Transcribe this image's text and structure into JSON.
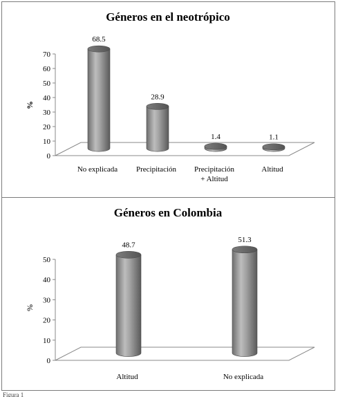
{
  "chart_data": [
    {
      "type": "bar",
      "title": "Géneros en el neotrópico",
      "ylabel": "%",
      "xlabel": "",
      "categories": [
        "No explicada",
        "Precipitación",
        "Precipitación + Altitud",
        "Altitud"
      ],
      "category_lines": [
        [
          "No explicada"
        ],
        [
          "Precipitación"
        ],
        [
          "Precipitación",
          "+ Altitud"
        ],
        [
          "Altitud"
        ]
      ],
      "values": [
        68.5,
        28.9,
        1.4,
        1.1
      ],
      "value_labels": [
        "68.5",
        "28.9",
        "1.4",
        "1.1"
      ],
      "ylim": [
        0,
        70
      ],
      "yticks": [
        0,
        10,
        20,
        30,
        40,
        50,
        60,
        70
      ],
      "style": "3d-cylinder",
      "bar_color": "#8c8c8c"
    },
    {
      "type": "bar",
      "title": "Géneros en Colombia",
      "ylabel": "%",
      "xlabel": "",
      "categories": [
        "Altitud",
        "No explicada"
      ],
      "category_lines": [
        [
          "Altitud"
        ],
        [
          "No explicada"
        ]
      ],
      "values": [
        48.7,
        51.3
      ],
      "value_labels": [
        "48.7",
        "51.3"
      ],
      "ylim": [
        0,
        50
      ],
      "yticks": [
        0,
        10,
        20,
        30,
        40,
        50
      ],
      "style": "3d-cylinder",
      "bar_color": "#8c8c8c"
    }
  ],
  "caption": "Figura 1"
}
